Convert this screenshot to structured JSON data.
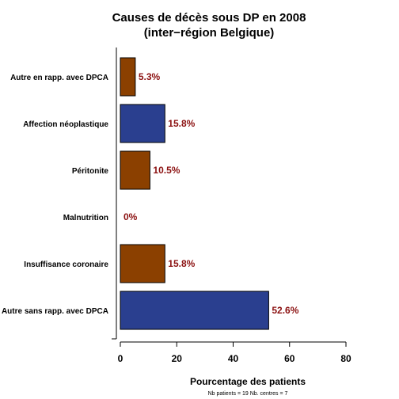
{
  "chart_data": {
    "type": "bar",
    "orientation": "horizontal",
    "title_lines": [
      "Causes de décès sous DP en 2008",
      "(inter−région Belgique)"
    ],
    "categories": [
      "Autre en rapp. avec DPCA",
      "Affection néoplastique",
      "Péritonite",
      "Malnutrition",
      "Insuffisance coronaire",
      "Autre sans rapp. avec DPCA"
    ],
    "values": [
      5.3,
      15.8,
      10.5,
      0,
      15.8,
      52.6
    ],
    "value_labels": [
      "5.3%",
      "15.8%",
      "10.5%",
      "0%",
      "15.8%",
      "52.6%"
    ],
    "bar_colors": [
      "#8B4000",
      "#2A3F8F",
      "#8B4000",
      "#8B4000",
      "#8B4000",
      "#2A3F8F"
    ],
    "value_label_color": "#8B1010",
    "xlabel": "Pourcentage des patients",
    "xlim": [
      0,
      80
    ],
    "xticks": [
      0,
      20,
      40,
      60,
      80
    ],
    "grid": false,
    "footnote": "Nb patients =  19     Nb. centres =  7"
  }
}
